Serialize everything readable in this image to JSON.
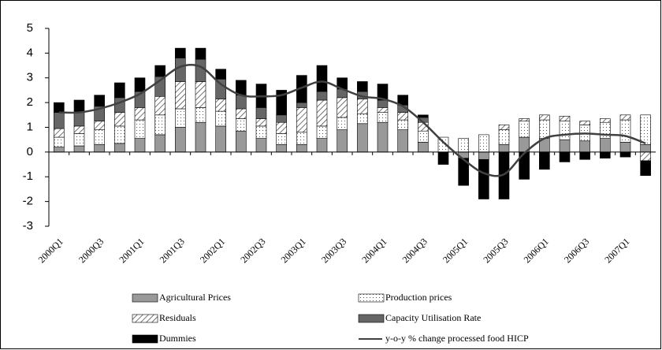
{
  "chart_data": {
    "type": "bar",
    "stacked": true,
    "categories": [
      "2000Q1",
      null,
      "2000Q3",
      null,
      "2001Q1",
      null,
      "2001Q3",
      null,
      "2002Q1",
      null,
      "2002Q3",
      null,
      "2003Q1",
      null,
      "2003Q3",
      null,
      "2004Q1",
      null,
      "2004Q3",
      null,
      "2005Q1",
      null,
      "2005Q3",
      null,
      "2006Q1",
      null,
      "2006Q3",
      null,
      "2007Q1",
      null
    ],
    "series": [
      {
        "name": "Agricultural Prices",
        "color": "#999999",
        "fill": "solid",
        "values": [
          0.2,
          0.25,
          0.3,
          0.35,
          0.55,
          0.7,
          1.0,
          1.2,
          1.05,
          0.85,
          0.55,
          0.3,
          0.3,
          0.55,
          0.9,
          1.15,
          1.2,
          0.9,
          0.4,
          0,
          -0.25,
          -0.3,
          0.3,
          0.6,
          0.55,
          0.5,
          0.45,
          0.55,
          0.4,
          0.3
        ]
      },
      {
        "name": "Production prices",
        "color": "#ffffff",
        "fill": "dots",
        "values": [
          0.4,
          0.5,
          0.6,
          0.7,
          0.75,
          0.8,
          0.75,
          0.6,
          0.6,
          0.5,
          0.5,
          0.45,
          0.5,
          0.5,
          0.5,
          0.4,
          0.4,
          0.4,
          0.45,
          0.6,
          0.55,
          0.7,
          0.6,
          0.65,
          0.75,
          0.75,
          0.65,
          0.65,
          0.9,
          1.2
        ]
      },
      {
        "name": "Residuals",
        "color": "#ffffff",
        "fill": "hatch",
        "values": [
          0.35,
          0.3,
          0.35,
          0.55,
          0.5,
          0.75,
          1.1,
          1.05,
          0.5,
          0.4,
          0.3,
          0.45,
          1.0,
          1.05,
          0.8,
          0.6,
          0.2,
          0.3,
          0.35,
          0,
          0,
          0,
          0.2,
          0.1,
          0.2,
          0.2,
          0.15,
          0.15,
          0.2,
          -0.35
        ]
      },
      {
        "name": "Capacity Utilisation Rate",
        "color": "#666666",
        "fill": "solid",
        "values": [
          0.65,
          0.55,
          0.6,
          0.6,
          0.65,
          0.8,
          0.95,
          0.9,
          0.8,
          0.55,
          0.45,
          0.3,
          0.2,
          0.35,
          0.35,
          0.3,
          0.3,
          0.3,
          0.2,
          0,
          0,
          0,
          0,
          0,
          0,
          0,
          0,
          0,
          0,
          0
        ]
      },
      {
        "name": "Dummies",
        "color": "#000000",
        "fill": "solid",
        "values": [
          0.4,
          0.5,
          0.45,
          0.6,
          0.55,
          0.45,
          0.4,
          0.45,
          0.4,
          0.6,
          0.95,
          1.0,
          1.1,
          1.05,
          0.45,
          0.4,
          0.65,
          0.4,
          0.1,
          -0.5,
          -1.1,
          -1.6,
          -1.9,
          -1.1,
          -0.7,
          -0.4,
          -0.3,
          -0.25,
          -0.2,
          -0.6
        ]
      },
      {
        "name": "y-o-y % change processed food HICP",
        "type": "line",
        "color": "#404040",
        "values": [
          1.6,
          1.6,
          1.75,
          2.0,
          2.35,
          2.9,
          3.45,
          3.45,
          2.75,
          2.3,
          2.25,
          2.3,
          2.6,
          2.85,
          2.55,
          2.25,
          2.15,
          1.85,
          1.2,
          0.4,
          -0.3,
          -0.85,
          -0.9,
          -0.05,
          0.55,
          0.7,
          0.75,
          0.7,
          0.65,
          0.35
        ]
      }
    ],
    "ylim": [
      -3,
      5
    ],
    "yticks": [
      -3,
      -2,
      -1,
      0,
      1,
      2,
      3,
      4,
      5
    ],
    "grid": false
  }
}
